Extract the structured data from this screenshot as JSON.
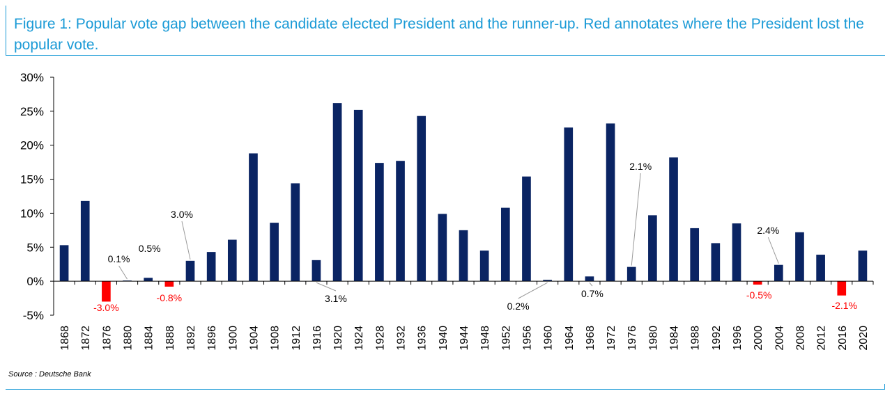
{
  "header": {
    "title": "Figure 1: Popular vote gap between the candidate elected President and the runner-up. Red annotates where the President lost the popular vote."
  },
  "footer": {
    "source": "Source : Deutsche Bank"
  },
  "colors": {
    "positive": "#0a2463",
    "negative": "#ff0000",
    "accent": "#1a9ad6"
  },
  "chart_data": {
    "type": "bar",
    "title": "Figure 1: Popular vote gap between the candidate elected President and the runner-up. Red annotates where the President lost the popular vote.",
    "xlabel": "",
    "ylabel": "",
    "ylim": [
      -5,
      30
    ],
    "yticks": [
      -5,
      0,
      5,
      10,
      15,
      20,
      25,
      30
    ],
    "ytick_labels": [
      "-5%",
      "0%",
      "5%",
      "10%",
      "15%",
      "20%",
      "25%",
      "30%"
    ],
    "grid": false,
    "legend": "none",
    "categories": [
      "1868",
      "1872",
      "1876",
      "1880",
      "1884",
      "1888",
      "1892",
      "1896",
      "1900",
      "1904",
      "1908",
      "1912",
      "1916",
      "1920",
      "1924",
      "1928",
      "1932",
      "1936",
      "1940",
      "1944",
      "1948",
      "1952",
      "1956",
      "1960",
      "1964",
      "1968",
      "1972",
      "1976",
      "1980",
      "1984",
      "1988",
      "1992",
      "1996",
      "2000",
      "2004",
      "2008",
      "2012",
      "2016",
      "2020"
    ],
    "values": [
      5.3,
      11.8,
      -3.0,
      0.1,
      0.5,
      -0.8,
      3.0,
      4.3,
      6.1,
      18.8,
      8.6,
      14.4,
      3.1,
      26.2,
      25.2,
      17.4,
      17.7,
      24.3,
      9.9,
      7.5,
      4.5,
      10.8,
      15.4,
      0.2,
      22.6,
      0.7,
      23.2,
      2.1,
      9.7,
      18.2,
      7.8,
      5.6,
      8.5,
      -0.5,
      2.4,
      7.2,
      3.9,
      -2.1,
      4.5
    ],
    "annotations": [
      {
        "category": "1876",
        "text": "-3.0%",
        "color": "negative"
      },
      {
        "category": "1880",
        "text": "0.1%",
        "color": "black"
      },
      {
        "category": "1884",
        "text": "0.5%",
        "color": "black"
      },
      {
        "category": "1888",
        "text": "-0.8%",
        "color": "negative"
      },
      {
        "category": "1892",
        "text": "3.0%",
        "color": "black"
      },
      {
        "category": "1916",
        "text": "3.1%",
        "color": "black"
      },
      {
        "category": "1960",
        "text": "0.2%",
        "color": "black"
      },
      {
        "category": "1968",
        "text": "0.7%",
        "color": "black"
      },
      {
        "category": "1976",
        "text": "2.1%",
        "color": "black"
      },
      {
        "category": "2000",
        "text": "-0.5%",
        "color": "negative"
      },
      {
        "category": "2004",
        "text": "2.4%",
        "color": "black"
      },
      {
        "category": "2016",
        "text": "-2.1%",
        "color": "negative"
      }
    ]
  }
}
